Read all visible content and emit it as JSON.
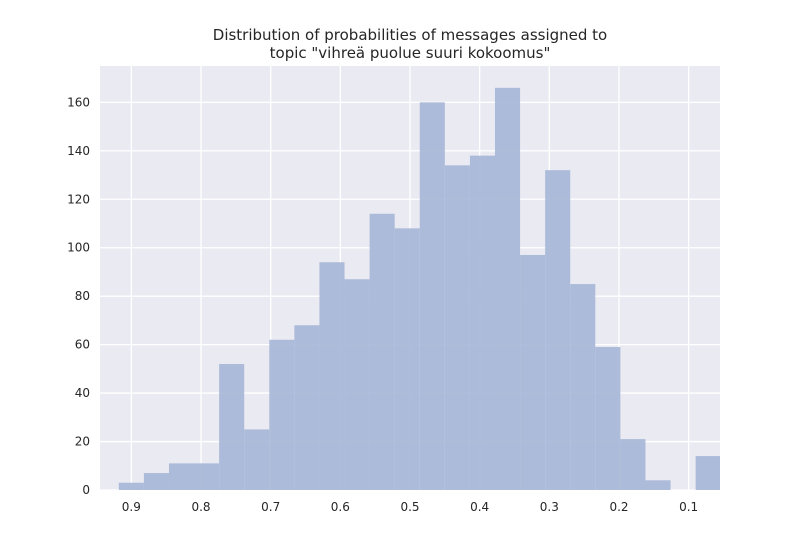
{
  "chart_data": {
    "type": "bar",
    "title_line1": "Distribution of probabilities of messages assigned to",
    "title_line2": "topic \"vihreä puolue suuri kokoomus\"",
    "xlabel": "",
    "ylabel": "",
    "x_reversed": true,
    "xlim": [
      0.945,
      0.055
    ],
    "ylim": [
      0,
      175
    ],
    "x_ticks": [
      0.9,
      0.8,
      0.7,
      0.6,
      0.5,
      0.4,
      0.3,
      0.2,
      0.1
    ],
    "y_ticks": [
      0,
      20,
      40,
      60,
      80,
      100,
      120,
      140,
      160
    ],
    "grid": true,
    "background_color": "#eaeaf2",
    "bar_color": "#a9b8d7",
    "bins": [
      {
        "x_left": 0.918,
        "x_right": 0.882,
        "value": 3
      },
      {
        "x_left": 0.882,
        "x_right": 0.846,
        "value": 7
      },
      {
        "x_left": 0.846,
        "x_right": 0.81,
        "value": 11
      },
      {
        "x_left": 0.81,
        "x_right": 0.774,
        "value": 11
      },
      {
        "x_left": 0.774,
        "x_right": 0.738,
        "value": 52
      },
      {
        "x_left": 0.738,
        "x_right": 0.702,
        "value": 25
      },
      {
        "x_left": 0.702,
        "x_right": 0.666,
        "value": 62
      },
      {
        "x_left": 0.666,
        "x_right": 0.63,
        "value": 68
      },
      {
        "x_left": 0.63,
        "x_right": 0.594,
        "value": 94
      },
      {
        "x_left": 0.594,
        "x_right": 0.558,
        "value": 87
      },
      {
        "x_left": 0.558,
        "x_right": 0.522,
        "value": 114
      },
      {
        "x_left": 0.522,
        "x_right": 0.486,
        "value": 108
      },
      {
        "x_left": 0.486,
        "x_right": 0.45,
        "value": 160
      },
      {
        "x_left": 0.45,
        "x_right": 0.414,
        "value": 134
      },
      {
        "x_left": 0.414,
        "x_right": 0.378,
        "value": 138
      },
      {
        "x_left": 0.378,
        "x_right": 0.342,
        "value": 166
      },
      {
        "x_left": 0.342,
        "x_right": 0.306,
        "value": 97
      },
      {
        "x_left": 0.306,
        "x_right": 0.27,
        "value": 132
      },
      {
        "x_left": 0.27,
        "x_right": 0.234,
        "value": 85
      },
      {
        "x_left": 0.234,
        "x_right": 0.198,
        "value": 59
      },
      {
        "x_left": 0.198,
        "x_right": 0.162,
        "value": 21
      },
      {
        "x_left": 0.162,
        "x_right": 0.126,
        "value": 4
      },
      {
        "x_left": 0.126,
        "x_right": 0.09,
        "value": 0
      },
      {
        "x_left": 0.09,
        "x_right": 0.055,
        "value": 14
      }
    ]
  }
}
